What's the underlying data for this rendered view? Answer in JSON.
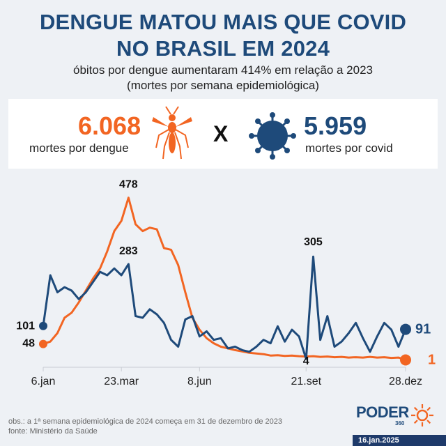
{
  "header": {
    "title_line1": "DENGUE MATOU MAIS QUE COVID",
    "title_line2": "NO BRASIL EM 2024",
    "subtitle_line1": "óbitos por dengue aumentaram 414% em relação a 2023",
    "subtitle_line2": "(mortes por semana epidemiológica)"
  },
  "stats": {
    "dengue_total": "6.068",
    "dengue_caption": "mortes por dengue",
    "versus": "X",
    "covid_total": "5.959",
    "covid_caption": "mortes por covid"
  },
  "colors": {
    "dengue": "#f26522",
    "covid": "#1e4a7a",
    "title": "#1e4a7a"
  },
  "icons": {
    "dengue": "mosquito-icon",
    "covid": "virus-icon"
  },
  "chart_data": {
    "type": "line",
    "x_tick_labels": [
      "6.jan",
      "23.mar",
      "8.jun",
      "21.set",
      "28.dez"
    ],
    "x_tick_weeks": [
      1,
      12,
      23,
      38,
      52
    ],
    "ylim": [
      0,
      500
    ],
    "series": [
      {
        "name": "dengue",
        "values": [
          48,
          55,
          80,
          125,
          140,
          170,
          205,
          240,
          270,
          320,
          380,
          410,
          478,
          400,
          380,
          390,
          385,
          330,
          325,
          280,
          200,
          125,
          90,
          65,
          50,
          40,
          35,
          30,
          26,
          22,
          20,
          18,
          14,
          15,
          13,
          14,
          12,
          11,
          12,
          10,
          11,
          9,
          10,
          8,
          9,
          8,
          10,
          8,
          9,
          7,
          8,
          1
        ],
        "point_labels": {
          "13": "478",
          "1": "48",
          "52": "1"
        }
      },
      {
        "name": "covid",
        "values": [
          101,
          250,
          200,
          215,
          205,
          180,
          200,
          230,
          260,
          250,
          270,
          250,
          283,
          130,
          125,
          150,
          135,
          110,
          60,
          40,
          120,
          130,
          70,
          85,
          60,
          65,
          35,
          40,
          30,
          25,
          40,
          60,
          50,
          100,
          55,
          90,
          70,
          4,
          305,
          60,
          130,
          40,
          55,
          80,
          110,
          65,
          25,
          70,
          110,
          90,
          40,
          91
        ],
        "point_labels": {
          "13": "283",
          "39": "305",
          "38": "4",
          "1": "101",
          "52": "91"
        }
      }
    ]
  },
  "footer": {
    "note_line1": "obs.: a 1ª semana epidemiológica de 2024 começa em 31 de dezembro de 2023",
    "note_line2": "fonte: Ministério da Saúde",
    "logo": "PODER",
    "logo_sub": "360",
    "date": "16.jan.2025"
  }
}
